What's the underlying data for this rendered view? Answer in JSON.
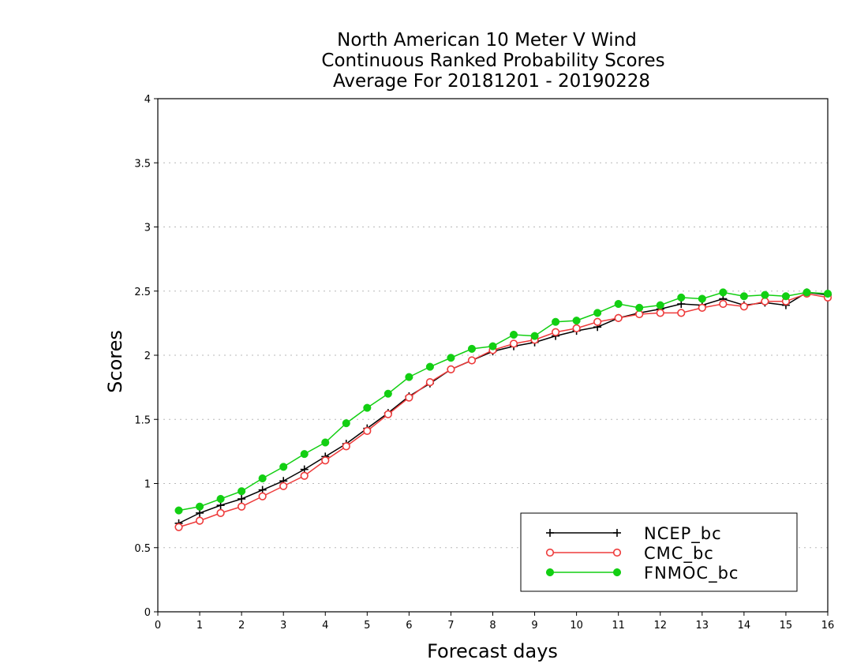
{
  "chart_data": {
    "type": "line",
    "title_lines": [
      "North American 10 Meter V Wind",
      "Continuous Ranked Probability Scores",
      "Average For 20181201 - 20190228"
    ],
    "xlabel": "Forecast days",
    "ylabel": "Scores",
    "xlim": [
      0,
      16
    ],
    "ylim": [
      0,
      4
    ],
    "x_ticks": [
      "0",
      "1",
      "2",
      "3",
      "4",
      "5",
      "6",
      "7",
      "8",
      "9",
      "10",
      "11",
      "12",
      "13",
      "14",
      "15",
      "16"
    ],
    "y_ticks": [
      "0",
      "0.5",
      "1",
      "1.5",
      "2",
      "2.5",
      "3",
      "3.5",
      "4"
    ],
    "grid": "horizontal dotted",
    "legend_position": "bottom-right",
    "x": [
      0.5,
      1.0,
      1.5,
      2.0,
      2.5,
      3.0,
      3.5,
      4.0,
      4.5,
      5.0,
      5.5,
      6.0,
      6.5,
      7.0,
      7.5,
      8.0,
      8.5,
      9.0,
      9.5,
      10.0,
      10.5,
      11.0,
      11.5,
      12.0,
      12.5,
      13.0,
      13.5,
      14.0,
      14.5,
      15.0,
      15.5,
      16.0
    ],
    "series": [
      {
        "name": "NCEP_bc",
        "color": "#000000",
        "marker": "plus",
        "values": [
          0.69,
          0.77,
          0.83,
          0.88,
          0.95,
          1.02,
          1.11,
          1.21,
          1.31,
          1.43,
          1.55,
          1.68,
          1.78,
          1.89,
          1.96,
          2.03,
          2.07,
          2.1,
          2.15,
          2.19,
          2.22,
          2.29,
          2.33,
          2.36,
          2.4,
          2.39,
          2.44,
          2.39,
          2.41,
          2.39,
          2.49,
          2.47
        ]
      },
      {
        "name": "CMC_bc",
        "color": "#ee3b3b",
        "marker": "open-circle",
        "values": [
          0.66,
          0.71,
          0.77,
          0.82,
          0.9,
          0.98,
          1.06,
          1.18,
          1.29,
          1.41,
          1.54,
          1.67,
          1.79,
          1.89,
          1.96,
          2.04,
          2.09,
          2.12,
          2.18,
          2.21,
          2.26,
          2.29,
          2.32,
          2.33,
          2.33,
          2.37,
          2.4,
          2.38,
          2.42,
          2.42,
          2.48,
          2.45
        ]
      },
      {
        "name": "FNMOC_bc",
        "color": "#12cf12",
        "marker": "filled-circle",
        "values": [
          0.79,
          0.82,
          0.88,
          0.94,
          1.04,
          1.13,
          1.23,
          1.32,
          1.47,
          1.59,
          1.7,
          1.83,
          1.91,
          1.98,
          2.05,
          2.07,
          2.16,
          2.15,
          2.26,
          2.27,
          2.33,
          2.4,
          2.37,
          2.39,
          2.45,
          2.44,
          2.49,
          2.46,
          2.47,
          2.46,
          2.49,
          2.48
        ]
      }
    ]
  }
}
